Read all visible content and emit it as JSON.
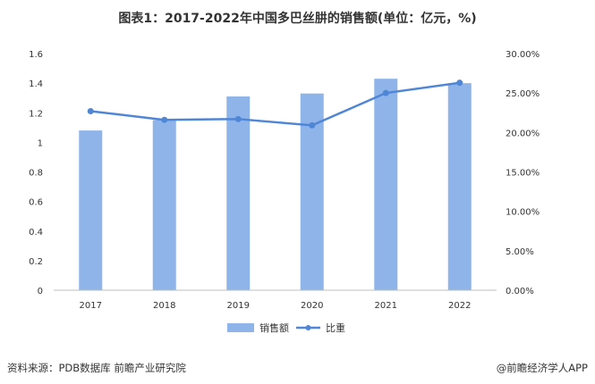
{
  "title": "图表1：2017-2022年中国多巴丝肼的销售额(单位：亿元，%)",
  "source": "资料来源：PDB数据库 前瞻产业研究院",
  "brand": "@前瞻经济学人APP",
  "legend": {
    "bar": "销售额",
    "line": "比重"
  },
  "colors": {
    "bar": "#8fb4ea",
    "line": "#4f86d6",
    "axis": "#bfbfbf"
  },
  "chart_data": {
    "type": "bar+line",
    "categories": [
      "2017",
      "2018",
      "2019",
      "2020",
      "2021",
      "2022"
    ],
    "series": [
      {
        "name": "销售额",
        "type": "bar",
        "axis": "left",
        "values": [
          1.08,
          1.15,
          1.31,
          1.33,
          1.43,
          1.4
        ]
      },
      {
        "name": "比重",
        "type": "line",
        "axis": "right",
        "values": [
          22.7,
          21.6,
          21.7,
          20.9,
          25.0,
          26.3
        ]
      }
    ],
    "y_left": {
      "ylim": [
        0,
        1.6
      ],
      "ticks": [
        "0",
        "0.2",
        "0.4",
        "0.6",
        "0.8",
        "1",
        "1.2",
        "1.4",
        "1.6"
      ]
    },
    "y_right": {
      "ylim": [
        0,
        30
      ],
      "ticks": [
        "0.00%",
        "5.00%",
        "10.00%",
        "15.00%",
        "20.00%",
        "25.00%",
        "30.00%"
      ]
    },
    "legend_position": "bottom-center"
  }
}
